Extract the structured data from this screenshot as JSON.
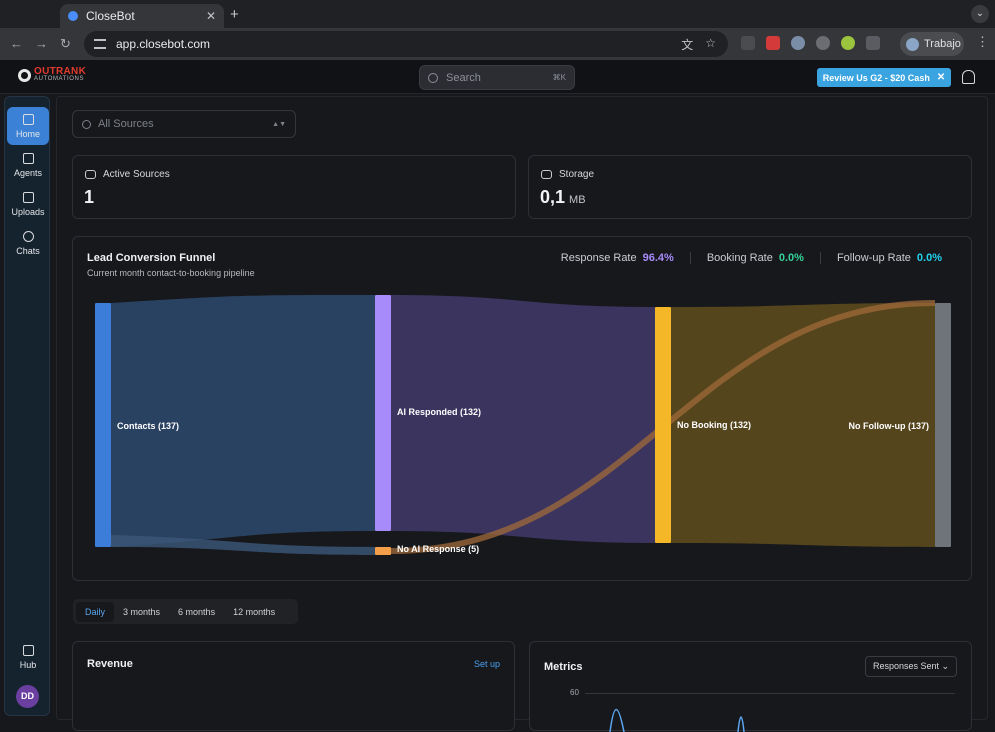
{
  "browser": {
    "tab_title": "CloseBot",
    "tab_close": "✕",
    "new_tab": "+",
    "tab_menu": "⌄",
    "url": "app.closebot.com",
    "profile_name": "Trabajo"
  },
  "app": {
    "logo_text": "OUTRANK",
    "logo_subtext": "AUTOMATIONS",
    "search_placeholder": "Search",
    "search_shortcut": "⌘K",
    "promo_label": "Review Us G2 - $20 Cash",
    "promo_close": "✕"
  },
  "sidebar": {
    "items": [
      {
        "label": "Home",
        "icon": "home-icon"
      },
      {
        "label": "Agents",
        "icon": "agents-icon"
      },
      {
        "label": "Uploads",
        "icon": "uploads-icon"
      },
      {
        "label": "Chats",
        "icon": "chats-icon"
      }
    ],
    "hub_label": "Hub",
    "avatar_initials": "DD"
  },
  "main": {
    "source_filter": "All Sources",
    "active_sources": {
      "label": "Active Sources",
      "value": "1"
    },
    "storage": {
      "label": "Storage",
      "value": "0,1",
      "unit": "MB"
    },
    "funnel": {
      "title": "Lead Conversion Funnel",
      "subtitle": "Current month contact-to-booking pipeline",
      "rates": [
        {
          "label": "Response Rate",
          "value": "96.4%",
          "color": "#a78bfa"
        },
        {
          "label": "Booking Rate",
          "value": "0.0%",
          "color": "#34d399"
        },
        {
          "label": "Follow-up Rate",
          "value": "0.0%",
          "color": "#22d3ee"
        }
      ],
      "nodes": {
        "contacts": "Contacts (137)",
        "ai_responded": "AI Responded (132)",
        "no_ai_response": "No AI Response (5)",
        "no_booking": "No Booking (132)",
        "no_followup": "No Follow-up (137)"
      }
    },
    "ranges": [
      "Daily",
      "3 months",
      "6 months",
      "12 months"
    ],
    "revenue": {
      "title": "Revenue",
      "action": "Set up"
    },
    "metrics": {
      "title": "Metrics",
      "selector": "Responses Sent ⌄",
      "y_tick": "60"
    }
  }
}
